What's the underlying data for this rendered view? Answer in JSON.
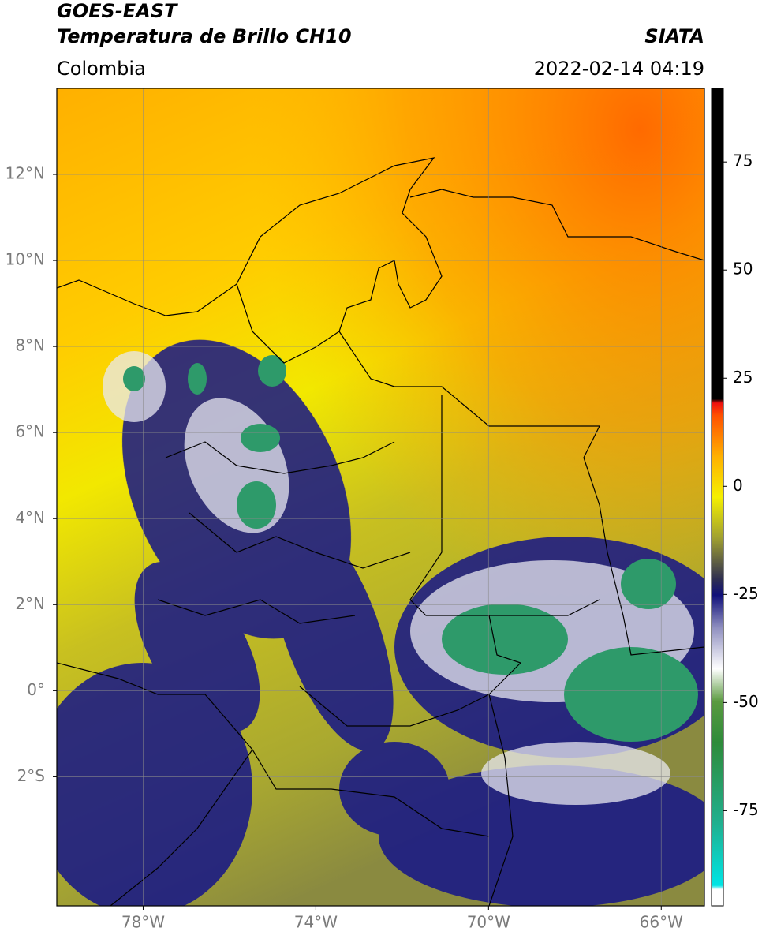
{
  "header": {
    "title": "GOES-EAST",
    "subtitle": "Temperatura de Brillo CH10",
    "source": "SIATA",
    "region": "Colombia",
    "datetime": "2022-02-14 04:19"
  },
  "map": {
    "type": "map",
    "xlim": [
      -80,
      -65
    ],
    "ylim": [
      -5,
      14
    ],
    "xticks": [
      {
        "value": -78,
        "label": "78°W"
      },
      {
        "value": -74,
        "label": "74°W"
      },
      {
        "value": -70,
        "label": "70°W"
      },
      {
        "value": -66,
        "label": "66°W"
      }
    ],
    "yticks": [
      {
        "value": 12,
        "label": "12°N"
      },
      {
        "value": 10,
        "label": "10°N"
      },
      {
        "value": 8,
        "label": "8°N"
      },
      {
        "value": 6,
        "label": "6°N"
      },
      {
        "value": 4,
        "label": "4°N"
      },
      {
        "value": 2,
        "label": "2°N"
      },
      {
        "value": 0,
        "label": "0°"
      },
      {
        "value": -2,
        "label": "2°S"
      }
    ],
    "grid": true
  },
  "colorbar": {
    "lim": [
      -97,
      92
    ],
    "ticks": [
      75,
      50,
      25,
      0,
      -25,
      -50,
      -75
    ]
  }
}
